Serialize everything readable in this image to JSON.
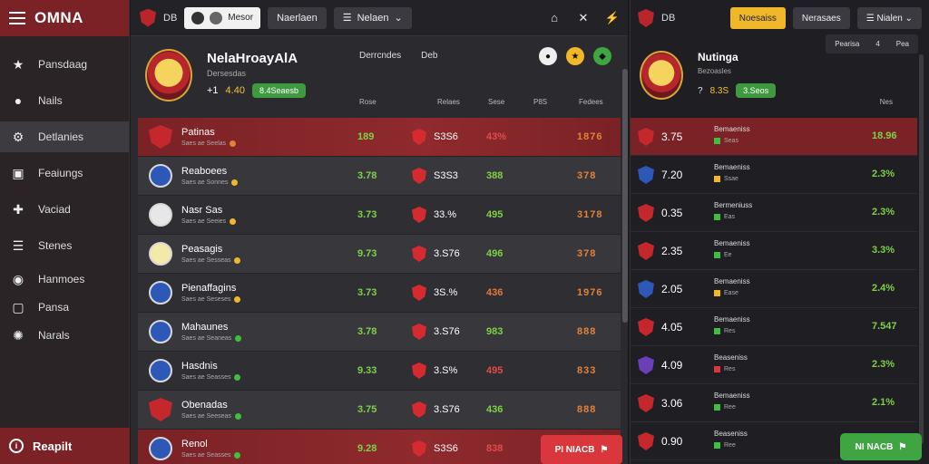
{
  "brand": {
    "title": "OMNA"
  },
  "sidebar": {
    "items": [
      {
        "label": "Pansdaag",
        "icon": "star-icon"
      },
      {
        "label": "Nails",
        "icon": "circle-icon"
      },
      {
        "label": "Detlanies",
        "icon": "settings-icon"
      },
      {
        "label": "Feaiungs",
        "icon": "image-icon"
      },
      {
        "label": "Vaciad",
        "icon": "puzzle-icon"
      },
      {
        "label": "Stenes",
        "icon": "list-icon"
      },
      {
        "label": "Hanmoes",
        "icon": "globe-icon"
      },
      {
        "label": "Pansa",
        "icon": "square-icon"
      },
      {
        "label": "Narals",
        "icon": "gear-icon"
      }
    ],
    "footer": "Reapilt"
  },
  "topbar": {
    "label": "DB",
    "pill_text": "Mesor",
    "btn1": "Naerlaen",
    "btn2": "Nelaen"
  },
  "team": {
    "name": "NelaHroayAlA",
    "sub": "Dersesdas",
    "score_a": "+1",
    "score_b": "4.40",
    "badge": "8.4Seaesb",
    "head_mid_1": "Derrcndes",
    "head_mid_2": "Deb"
  },
  "columns": [
    "Rose",
    "Relaes",
    "Sese",
    "P8S",
    "Fedees"
  ],
  "rows": [
    {
      "name": "Patinas",
      "sub": "Saes ae Seelas",
      "v1": "189",
      "v2": "S3S6",
      "v3": "43%",
      "v4": "1876",
      "highlight": true
    },
    {
      "name": "Reaboees",
      "sub": "Saes ae Sonnes",
      "v1": "3.78",
      "v2": "S3S3",
      "v3": "388",
      "v4": "378"
    },
    {
      "name": "Nasr Sas",
      "sub": "Saes ae Seeies",
      "v1": "3.73",
      "v2": "33.%",
      "v3": "495",
      "v4": "3178"
    },
    {
      "name": "Peasagis",
      "sub": "Saes ae Sesseas",
      "v1": "9.73",
      "v2": "3.S76",
      "v3": "496",
      "v4": "378"
    },
    {
      "name": "Pienaffagins",
      "sub": "Saes ae Seseses",
      "v1": "3.73",
      "v2": "3S.%",
      "v3": "436",
      "v4": "1976"
    },
    {
      "name": "Mahaunes",
      "sub": "Saes ae Seaneas",
      "v1": "3.78",
      "v2": "3.S76",
      "v3": "983",
      "v4": "888"
    },
    {
      "name": "Hasdnis",
      "sub": "Saes ae Seasses",
      "v1": "9.33",
      "v2": "3.S%",
      "v3": "495",
      "v4": "833"
    },
    {
      "name": "Obenadas",
      "sub": "Saes ae Seeseas",
      "v1": "3.75",
      "v2": "3.S76",
      "v3": "436",
      "v4": "888"
    },
    {
      "name": "Renol",
      "sub": "Saes ae Seasses",
      "v1": "9.28",
      "v2": "S3S6",
      "v3": "838",
      "v4": "",
      "highlight": true
    }
  ],
  "red_action": "PI NIACB",
  "side": {
    "label": "DB",
    "yellow_btn": "Noesaiss",
    "dark_btn_1": "Nerasaes",
    "dark_btn_2": "Nialen",
    "name": "Nutinga",
    "sub": "Bezoasles",
    "score_a": "?",
    "score_b": "8.3S",
    "badge": "3.Seos",
    "filter_a": "Pearisa",
    "filter_b": "4",
    "filter_c": "Pea",
    "col": "Nes",
    "rows": [
      {
        "val": "3.75",
        "label": "Bemaeniss",
        "status": "Seas",
        "pct": "18.96",
        "highlight": true
      },
      {
        "val": "7.20",
        "label": "Bemaeniss",
        "status": "Ssae",
        "pct": "2.3%"
      },
      {
        "val": "0.35",
        "label": "Bermeniuss",
        "status": "Eas",
        "pct": "2.3%"
      },
      {
        "val": "2.35",
        "label": "Bemaeniss",
        "status": "Ee",
        "pct": "3.3%"
      },
      {
        "val": "2.05",
        "label": "Bemaeniss",
        "status": "Ease",
        "pct": "2.4%"
      },
      {
        "val": "4.05",
        "label": "Bemaeniss",
        "status": "Res",
        "pct": "7.547"
      },
      {
        "val": "4.09",
        "label": "Beaseniss",
        "status": "Res",
        "pct": "2.3%"
      },
      {
        "val": "3.06",
        "label": "Bemaeniss",
        "status": "Ree",
        "pct": "2.1%"
      },
      {
        "val": "0.90",
        "label": "Beaseniss",
        "status": "Ree",
        "pct": ""
      }
    ]
  },
  "green_action": "NI NACB"
}
